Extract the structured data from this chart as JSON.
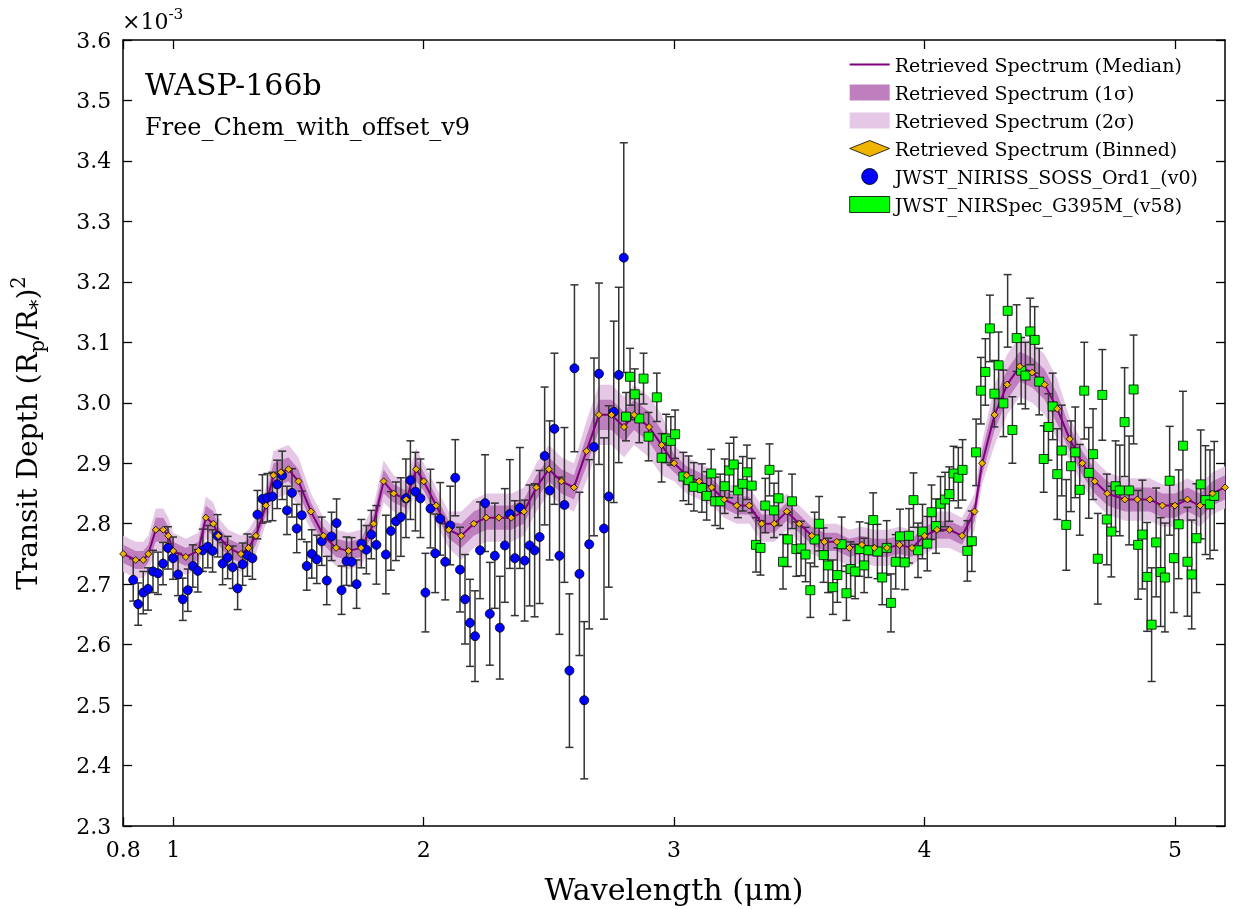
{
  "chart_data": {
    "type": "line",
    "title": "WASP-166b",
    "subtitle": "Free_Chem_with_offset_v9",
    "xlabel": "Wavelength (μm)",
    "ylabel": "Transit Depth (R$_{p}$/R$_{*}$)$^{2}$",
    "annotations": [
      "×10$^{-3}$"
    ],
    "xlim": [
      0.8,
      5.2
    ],
    "xticks": [
      0.8,
      1,
      2,
      3,
      4,
      5
    ],
    "ylim": [
      2.3,
      3.6
    ],
    "yticks": [
      2.3,
      2.4,
      2.5,
      2.6,
      2.7,
      2.8,
      2.9,
      {
        "value": 3.0,
        "label": "3.0"
      },
      3.1,
      3.2,
      3.3,
      3.4,
      3.5,
      3.6
    ],
    "legend": "top right",
    "x": [
      0.8,
      0.85,
      0.88,
      0.9,
      0.93,
      0.96,
      0.98,
      1.0,
      1.05,
      1.1,
      1.13,
      1.16,
      1.18,
      1.22,
      1.27,
      1.3,
      1.33,
      1.37,
      1.4,
      1.43,
      1.46,
      1.5,
      1.55,
      1.6,
      1.65,
      1.7,
      1.75,
      1.8,
      1.84,
      1.88,
      1.93,
      1.97,
      2.0,
      2.05,
      2.1,
      2.15,
      2.2,
      2.25,
      2.3,
      2.35,
      2.4,
      2.45,
      2.5,
      2.55,
      2.6,
      2.65,
      2.7,
      2.75,
      2.8,
      2.84,
      2.9,
      2.95,
      3.0,
      3.05,
      3.1,
      3.15,
      3.2,
      3.25,
      3.3,
      3.35,
      3.4,
      3.45,
      3.5,
      3.55,
      3.6,
      3.65,
      3.7,
      3.75,
      3.8,
      3.85,
      3.9,
      3.95,
      4.0,
      4.05,
      4.1,
      4.15,
      4.2,
      4.23,
      4.28,
      4.33,
      4.38,
      4.43,
      4.48,
      4.53,
      4.58,
      4.63,
      4.68,
      4.73,
      4.8,
      4.85,
      4.9,
      4.95,
      5.0,
      5.05,
      5.1,
      5.15,
      5.2
    ],
    "series": [
      {
        "name": "Retrieved Spectrum (Median)",
        "type": "line",
        "color": "#800080",
        "marker": "none",
        "values": [
          2.75,
          2.74,
          2.74,
          2.75,
          2.79,
          2.79,
          2.78,
          2.755,
          2.745,
          2.755,
          2.81,
          2.8,
          2.78,
          2.76,
          2.75,
          2.76,
          2.78,
          2.83,
          2.88,
          2.885,
          2.89,
          2.87,
          2.82,
          2.78,
          2.76,
          2.755,
          2.76,
          2.8,
          2.87,
          2.85,
          2.84,
          2.89,
          2.87,
          2.83,
          2.79,
          2.78,
          2.8,
          2.81,
          2.81,
          2.81,
          2.82,
          2.86,
          2.89,
          2.87,
          2.86,
          2.92,
          2.98,
          2.98,
          2.96,
          2.98,
          2.96,
          2.93,
          2.9,
          2.88,
          2.87,
          2.86,
          2.84,
          2.83,
          2.83,
          2.8,
          2.8,
          2.82,
          2.8,
          2.78,
          2.77,
          2.77,
          2.76,
          2.765,
          2.76,
          2.76,
          2.765,
          2.76,
          2.78,
          2.79,
          2.79,
          2.78,
          2.82,
          2.9,
          2.98,
          3.03,
          3.06,
          3.05,
          3.03,
          2.99,
          2.94,
          2.9,
          2.87,
          2.85,
          2.84,
          2.84,
          2.84,
          2.83,
          2.83,
          2.84,
          2.83,
          2.85,
          2.86
        ]
      },
      {
        "name": "Retrieved Spectrum (1σ)",
        "color": "#bf7fbf",
        "values": [
          null,
          null,
          null,
          null,
          null,
          null,
          null,
          null,
          null,
          null,
          null,
          null,
          null,
          null,
          null,
          null,
          null,
          null,
          null,
          null,
          null,
          null,
          null,
          null,
          null,
          null,
          null,
          null,
          null,
          null,
          null,
          null,
          null,
          null,
          null,
          null,
          null,
          null,
          null,
          null,
          null,
          null,
          null,
          null,
          null,
          null,
          null,
          null,
          null,
          null,
          null,
          null,
          null,
          null,
          null,
          null,
          null,
          null,
          null,
          null,
          null,
          null,
          null,
          null,
          null,
          null,
          null,
          null,
          null,
          null,
          null,
          null,
          null,
          null,
          null,
          null,
          null,
          null,
          null,
          null,
          null,
          null,
          null,
          null,
          null,
          null,
          null,
          null,
          null,
          null,
          null,
          null,
          null,
          null,
          null,
          null,
          null
        ],
        "lower": [
          2.735,
          2.725,
          2.725,
          2.735,
          2.77,
          2.77,
          2.765,
          2.74,
          2.73,
          2.74,
          2.79,
          2.78,
          2.765,
          2.745,
          2.735,
          2.745,
          2.765,
          2.815,
          2.86,
          2.865,
          2.87,
          2.85,
          2.805,
          2.765,
          2.745,
          2.74,
          2.745,
          2.785,
          2.85,
          2.835,
          2.825,
          2.87,
          2.855,
          2.815,
          2.775,
          2.76,
          2.78,
          2.79,
          2.79,
          2.79,
          2.8,
          2.84,
          2.87,
          2.85,
          2.84,
          2.895,
          2.955,
          2.955,
          2.935,
          2.955,
          2.935,
          2.905,
          2.885,
          2.865,
          2.855,
          2.845,
          2.825,
          2.815,
          2.815,
          2.785,
          2.785,
          2.805,
          2.785,
          2.765,
          2.755,
          2.755,
          2.745,
          2.75,
          2.745,
          2.745,
          2.75,
          2.745,
          2.765,
          2.775,
          2.775,
          2.765,
          2.805,
          2.88,
          2.955,
          3.005,
          3.035,
          3.025,
          3.005,
          2.965,
          2.92,
          2.88,
          2.85,
          2.83,
          2.82,
          2.82,
          2.82,
          2.81,
          2.81,
          2.82,
          2.81,
          2.83,
          2.84
        ],
        "upper": [
          2.765,
          2.755,
          2.755,
          2.765,
          2.81,
          2.81,
          2.795,
          2.77,
          2.76,
          2.77,
          2.83,
          2.82,
          2.795,
          2.775,
          2.765,
          2.775,
          2.795,
          2.845,
          2.9,
          2.905,
          2.91,
          2.89,
          2.835,
          2.795,
          2.775,
          2.77,
          2.775,
          2.815,
          2.89,
          2.865,
          2.855,
          2.91,
          2.885,
          2.845,
          2.805,
          2.8,
          2.82,
          2.83,
          2.83,
          2.83,
          2.84,
          2.88,
          2.91,
          2.89,
          2.88,
          2.945,
          3.005,
          3.005,
          2.985,
          3.005,
          2.985,
          2.955,
          2.915,
          2.895,
          2.885,
          2.875,
          2.855,
          2.845,
          2.845,
          2.815,
          2.815,
          2.835,
          2.815,
          2.795,
          2.785,
          2.785,
          2.775,
          2.78,
          2.775,
          2.775,
          2.78,
          2.775,
          2.795,
          2.805,
          2.805,
          2.795,
          2.835,
          2.92,
          3.005,
          3.055,
          3.085,
          3.075,
          3.055,
          3.015,
          2.96,
          2.92,
          2.89,
          2.87,
          2.86,
          2.86,
          2.86,
          2.85,
          2.85,
          2.86,
          2.85,
          2.87,
          2.88
        ]
      },
      {
        "name": "Retrieved Spectrum (2σ)",
        "color": "#e5c8e5",
        "values": [
          null,
          null,
          null,
          null,
          null,
          null,
          null,
          null,
          null,
          null,
          null,
          null,
          null,
          null,
          null,
          null,
          null,
          null,
          null,
          null,
          null,
          null,
          null,
          null,
          null,
          null,
          null,
          null,
          null,
          null,
          null,
          null,
          null,
          null,
          null,
          null,
          null,
          null,
          null,
          null,
          null,
          null,
          null,
          null,
          null,
          null,
          null,
          null,
          null,
          null,
          null,
          null,
          null,
          null,
          null,
          null,
          null,
          null,
          null,
          null,
          null,
          null,
          null,
          null,
          null,
          null,
          null,
          null,
          null,
          null,
          null,
          null,
          null,
          null,
          null,
          null,
          null,
          null,
          null,
          null,
          null,
          null,
          null,
          null,
          null,
          null,
          null,
          null,
          null,
          null,
          null,
          null,
          null,
          null,
          null,
          null,
          null
        ],
        "lower": [
          2.72,
          2.71,
          2.71,
          2.72,
          2.755,
          2.755,
          2.75,
          2.725,
          2.715,
          2.725,
          2.775,
          2.765,
          2.75,
          2.73,
          2.72,
          2.73,
          2.75,
          2.8,
          2.84,
          2.845,
          2.85,
          2.83,
          2.79,
          2.75,
          2.73,
          2.725,
          2.73,
          2.77,
          2.835,
          2.82,
          2.81,
          2.855,
          2.84,
          2.8,
          2.76,
          2.74,
          2.76,
          2.77,
          2.77,
          2.77,
          2.78,
          2.82,
          2.85,
          2.83,
          2.82,
          2.87,
          2.93,
          2.93,
          2.91,
          2.93,
          2.91,
          2.88,
          2.87,
          2.85,
          2.84,
          2.83,
          2.81,
          2.8,
          2.8,
          2.77,
          2.77,
          2.79,
          2.77,
          2.75,
          2.74,
          2.74,
          2.73,
          2.735,
          2.73,
          2.73,
          2.735,
          2.73,
          2.75,
          2.76,
          2.76,
          2.75,
          2.79,
          2.865,
          2.93,
          2.98,
          3.01,
          3.0,
          2.98,
          2.94,
          2.905,
          2.865,
          2.835,
          2.815,
          2.805,
          2.805,
          2.805,
          2.795,
          2.795,
          2.805,
          2.795,
          2.815,
          2.825
        ],
        "upper": [
          2.78,
          2.77,
          2.77,
          2.78,
          2.825,
          2.825,
          2.81,
          2.785,
          2.775,
          2.785,
          2.845,
          2.835,
          2.81,
          2.79,
          2.78,
          2.79,
          2.81,
          2.86,
          2.92,
          2.925,
          2.93,
          2.91,
          2.85,
          2.81,
          2.79,
          2.785,
          2.79,
          2.83,
          2.905,
          2.88,
          2.87,
          2.925,
          2.9,
          2.86,
          2.82,
          2.82,
          2.84,
          2.85,
          2.85,
          2.85,
          2.86,
          2.9,
          2.93,
          2.91,
          2.9,
          2.97,
          3.03,
          3.03,
          3.01,
          3.03,
          3.01,
          2.98,
          2.93,
          2.91,
          2.9,
          2.89,
          2.87,
          2.86,
          2.86,
          2.83,
          2.83,
          2.85,
          2.83,
          2.81,
          2.8,
          2.8,
          2.79,
          2.795,
          2.79,
          2.79,
          2.795,
          2.79,
          2.81,
          2.82,
          2.82,
          2.81,
          2.85,
          2.935,
          3.03,
          3.08,
          3.11,
          3.1,
          3.08,
          3.04,
          2.975,
          2.935,
          2.905,
          2.885,
          2.875,
          2.875,
          2.875,
          2.865,
          2.865,
          2.875,
          2.865,
          2.885,
          2.895
        ]
      },
      {
        "name": "Retrieved Spectrum (Binned)",
        "type": "scatter",
        "color": "#f0b400",
        "marker": "diamond",
        "values": [
          2.75,
          2.74,
          2.74,
          2.75,
          2.79,
          2.79,
          2.78,
          2.755,
          2.745,
          2.755,
          2.81,
          2.8,
          2.78,
          2.76,
          2.75,
          2.76,
          2.78,
          2.83,
          2.88,
          2.885,
          2.89,
          2.87,
          2.82,
          2.78,
          2.76,
          2.755,
          2.76,
          2.8,
          2.87,
          2.85,
          2.84,
          2.89,
          2.87,
          2.83,
          2.79,
          2.78,
          2.8,
          2.81,
          2.81,
          2.81,
          2.82,
          2.86,
          2.89,
          2.87,
          2.86,
          2.92,
          2.98,
          2.98,
          2.96,
          2.98,
          2.96,
          2.93,
          2.9,
          2.88,
          2.87,
          2.86,
          2.84,
          2.83,
          2.83,
          2.8,
          2.8,
          2.82,
          2.8,
          2.78,
          2.77,
          2.77,
          2.76,
          2.765,
          2.76,
          2.76,
          2.765,
          2.76,
          2.78,
          2.79,
          2.79,
          2.78,
          2.82,
          2.9,
          2.98,
          3.03,
          3.06,
          3.05,
          3.03,
          2.99,
          2.94,
          2.9,
          2.87,
          2.85,
          2.84,
          2.84,
          2.84,
          2.83,
          2.83,
          2.84,
          2.83,
          2.85,
          2.86
        ]
      },
      {
        "name": "JWST_NIRISS_SOSS_Ord1_(v0)",
        "type": "scatter",
        "color": "#0000ff",
        "marker": "circle",
        "x": [
          0.84,
          0.86,
          0.88,
          0.899,
          0.919,
          0.939,
          0.959,
          0.979,
          0.999,
          1.019,
          1.038,
          1.058,
          1.078,
          1.098,
          1.118,
          1.138,
          1.157,
          1.177,
          1.197,
          1.217,
          1.237,
          1.257,
          1.277,
          1.296,
          1.316,
          1.336,
          1.356,
          1.376,
          1.396,
          1.415,
          1.435,
          1.454,
          1.474,
          1.493,
          1.513,
          1.533,
          1.553,
          1.573,
          1.593,
          1.613,
          1.632,
          1.652,
          1.672,
          1.692,
          1.712,
          1.732,
          1.751,
          1.771,
          1.791,
          1.811,
          1.849,
          1.869,
          1.889,
          1.909,
          1.929,
          1.947,
          1.967,
          1.987,
          2.007,
          2.027,
          2.046,
          2.066,
          2.086,
          2.106,
          2.126,
          2.145,
          2.165,
          2.185,
          2.205,
          2.225,
          2.245,
          2.264,
          2.284,
          2.304,
          2.324,
          2.344,
          2.364,
          2.384,
          2.403,
          2.423,
          2.443,
          2.463,
          2.483,
          2.503,
          2.522,
          2.542,
          2.562,
          2.582,
          2.602,
          2.622,
          2.641,
          2.661,
          2.68,
          2.7,
          2.72,
          2.739,
          2.759,
          2.779,
          2.799
        ],
        "values": [
          2.707,
          2.667,
          2.686,
          2.692,
          2.721,
          2.718,
          2.734,
          2.76,
          2.743,
          2.716,
          2.675,
          2.69,
          2.73,
          2.722,
          2.756,
          2.762,
          2.755,
          2.78,
          2.734,
          2.744,
          2.728,
          2.693,
          2.733,
          2.748,
          2.743,
          2.815,
          2.841,
          2.843,
          2.845,
          2.865,
          2.88,
          2.822,
          2.851,
          2.792,
          2.814,
          2.73,
          2.75,
          2.741,
          2.771,
          2.706,
          2.779,
          2.801,
          2.69,
          2.738,
          2.737,
          2.7,
          2.767,
          2.757,
          2.782,
          2.765,
          2.749,
          2.788,
          2.804,
          2.811,
          2.842,
          2.872,
          2.853,
          2.842,
          2.686,
          2.825,
          2.751,
          2.808,
          2.737,
          2.797,
          2.876,
          2.724,
          2.675,
          2.636,
          2.614,
          2.756,
          2.834,
          2.651,
          2.747,
          2.628,
          2.764,
          2.816,
          2.743,
          2.826,
          2.739,
          2.764,
          2.756,
          2.778,
          2.912,
          2.855,
          2.957,
          2.747,
          2.831,
          2.557,
          3.057,
          2.717,
          2.508,
          2.766,
          2.927,
          3.048,
          2.792,
          2.845,
          2.985,
          3.046,
          3.24
        ],
        "errors": [
          0.035,
          0.035,
          0.035,
          0.035,
          0.035,
          0.035,
          0.035,
          0.035,
          0.035,
          0.035,
          0.035,
          0.035,
          0.035,
          0.035,
          0.035,
          0.035,
          0.035,
          0.035,
          0.035,
          0.035,
          0.035,
          0.035,
          0.035,
          0.035,
          0.035,
          0.04,
          0.04,
          0.04,
          0.04,
          0.04,
          0.04,
          0.04,
          0.04,
          0.04,
          0.04,
          0.04,
          0.04,
          0.04,
          0.04,
          0.04,
          0.04,
          0.04,
          0.04,
          0.04,
          0.04,
          0.04,
          0.04,
          0.04,
          0.04,
          0.065,
          0.065,
          0.065,
          0.065,
          0.065,
          0.065,
          0.065,
          0.065,
          0.065,
          0.065,
          0.065,
          0.065,
          0.06,
          0.063,
          0.065,
          0.063,
          0.07,
          0.074,
          0.072,
          0.075,
          0.08,
          0.08,
          0.085,
          0.087,
          0.085,
          0.094,
          0.09,
          0.095,
          0.1,
          0.1,
          0.1,
          0.11,
          0.11,
          0.114,
          0.115,
          0.125,
          0.13,
          0.128,
          0.127,
          0.138,
          0.135,
          0.13,
          0.14,
          0.147,
          0.15,
          0.15,
          0.15,
          0.15,
          0.145,
          0.19
        ]
      },
      {
        "name": "JWST_NIRSpec_G395M_(v58)",
        "type": "scatter",
        "color": "#00ff00",
        "marker": "square",
        "x": [
          2.808,
          2.824,
          2.843,
          2.861,
          2.878,
          2.898,
          2.931,
          2.95,
          2.968,
          2.987,
          3.004,
          3.037,
          3.058,
          3.079,
          3.111,
          3.13,
          3.148,
          3.164,
          3.184,
          3.202,
          3.22,
          3.238,
          3.255,
          3.274,
          3.291,
          3.31,
          3.327,
          3.345,
          3.364,
          3.381,
          3.399,
          3.417,
          3.435,
          3.454,
          3.471,
          3.488,
          3.507,
          3.525,
          3.544,
          3.561,
          3.579,
          3.597,
          3.615,
          3.634,
          3.652,
          3.669,
          3.688,
          3.705,
          3.723,
          3.741,
          3.759,
          3.776,
          3.795,
          3.812,
          3.831,
          3.849,
          3.866,
          3.885,
          3.902,
          3.921,
          3.938,
          3.956,
          3.974,
          3.992,
          4.011,
          4.028,
          4.046,
          4.064,
          4.082,
          4.099,
          4.116,
          4.135,
          4.152,
          4.171,
          4.189,
          4.206,
          4.225,
          4.243,
          4.261,
          4.279,
          4.296,
          4.315,
          4.332,
          4.351,
          4.368,
          4.386,
          4.403,
          4.422,
          4.44,
          4.458,
          4.476,
          4.495,
          4.512,
          4.53,
          4.548,
          4.566,
          4.585,
          4.602,
          4.62,
          4.638,
          4.656,
          4.673,
          4.692,
          4.71,
          4.728,
          4.746,
          4.763,
          4.78,
          4.799,
          4.817,
          4.835,
          4.853,
          4.87,
          4.889,
          4.907,
          4.925,
          4.943,
          4.96,
          4.979,
          4.996,
          5.015,
          5.032,
          5.05,
          5.067,
          5.086,
          5.103,
          5.122,
          5.14,
          5.157
        ],
        "values": [
          2.977,
          3.043,
          3.014,
          2.974,
          3.04,
          2.944,
          3.009,
          2.909,
          2.941,
          2.937,
          2.948,
          2.878,
          2.872,
          2.861,
          2.859,
          2.846,
          2.883,
          2.837,
          2.837,
          2.862,
          2.888,
          2.898,
          2.855,
          2.866,
          2.885,
          2.863,
          2.765,
          2.76,
          2.83,
          2.889,
          2.822,
          2.842,
          2.737,
          2.774,
          2.837,
          2.758,
          2.759,
          2.749,
          2.69,
          2.774,
          2.8,
          2.748,
          2.731,
          2.695,
          2.715,
          2.766,
          2.685,
          2.725,
          2.721,
          2.758,
          2.731,
          2.756,
          2.806,
          2.754,
          2.711,
          2.76,
          2.669,
          2.737,
          2.779,
          2.736,
          2.78,
          2.839,
          2.756,
          2.787,
          2.767,
          2.819,
          2.796,
          2.833,
          2.84,
          2.849,
          2.883,
          2.876,
          2.889,
          2.755,
          2.771,
          2.918,
          3.02,
          3.051,
          3.123,
          3.015,
          3.062,
          2.999,
          3.152,
          2.955,
          3.107,
          3.053,
          3.045,
          3.118,
          3.104,
          3.035,
          2.907,
          2.96,
          2.994,
          2.882,
          2.921,
          2.798,
          2.895,
          2.918,
          2.856,
          3.02,
          2.884,
          2.915,
          2.742,
          3.013,
          2.807,
          2.787,
          2.862,
          2.855,
          2.968,
          2.855,
          3.022,
          2.765,
          2.782,
          2.712,
          2.633,
          2.769,
          2.72,
          2.711,
          2.871,
          2.743,
          2.799,
          2.929,
          2.737,
          2.716,
          2.776,
          2.865,
          2.839,
          2.832,
          2.846
        ],
        "errors": [
          0.04,
          0.047,
          0.042,
          0.04,
          0.042,
          0.04,
          0.04,
          0.04,
          0.04,
          0.04,
          0.04,
          0.04,
          0.04,
          0.04,
          0.04,
          0.04,
          0.04,
          0.04,
          0.045,
          0.045,
          0.045,
          0.045,
          0.045,
          0.045,
          0.045,
          0.045,
          0.045,
          0.045,
          0.045,
          0.043,
          0.045,
          0.045,
          0.045,
          0.045,
          0.045,
          0.045,
          0.045,
          0.045,
          0.045,
          0.045,
          0.045,
          0.045,
          0.045,
          0.045,
          0.045,
          0.045,
          0.045,
          0.045,
          0.045,
          0.045,
          0.045,
          0.045,
          0.045,
          0.045,
          0.045,
          0.045,
          0.048,
          0.045,
          0.045,
          0.045,
          0.045,
          0.045,
          0.045,
          0.045,
          0.045,
          0.045,
          0.045,
          0.045,
          0.045,
          0.045,
          0.045,
          0.05,
          0.05,
          0.05,
          0.05,
          0.055,
          0.055,
          0.055,
          0.055,
          0.055,
          0.055,
          0.055,
          0.06,
          0.055,
          0.055,
          0.055,
          0.055,
          0.055,
          0.055,
          0.055,
          0.055,
          0.055,
          0.055,
          0.075,
          0.075,
          0.075,
          0.075,
          0.075,
          0.075,
          0.08,
          0.075,
          0.075,
          0.075,
          0.075,
          0.075,
          0.075,
          0.075,
          0.075,
          0.09,
          0.09,
          0.09,
          0.09,
          0.09,
          0.09,
          0.094,
          0.09,
          0.09,
          0.09,
          0.09,
          0.09,
          0.09,
          0.09,
          0.09,
          0.09,
          0.09,
          0.09,
          0.09,
          0.09,
          0.09
        ]
      }
    ]
  }
}
